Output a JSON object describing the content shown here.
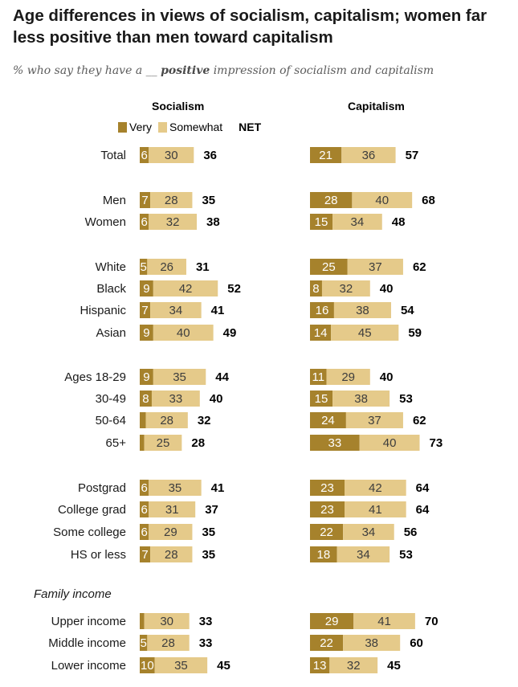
{
  "title": "Age differences in views of socialism, capitalism; women far less positive than men toward capitalism",
  "subtitle_prefix": "% who say they have a __",
  "subtitle_emph": "positive",
  "subtitle_suffix": "impression of socialism and capitalism",
  "colors": {
    "very": "#a6822c",
    "somewhat": "#e5ca8a"
  },
  "legend": {
    "very": "Very",
    "somewhat": "Somewhat",
    "net": "NET"
  },
  "chart_data": {
    "type": "bar",
    "stacked": true,
    "panels": [
      "Socialism",
      "Capitalism"
    ],
    "section_labels": [
      "Family income"
    ],
    "categories": [
      "Total",
      "Men",
      "Women",
      "White",
      "Black",
      "Hispanic",
      "Asian",
      "Ages 18-29",
      "30-49",
      "50-64",
      "65+",
      "Postgrad",
      "College grad",
      "Some college",
      "HS or less",
      "Upper income",
      "Middle income",
      "Lower income"
    ],
    "socialism": {
      "very": [
        "6",
        "7",
        "6",
        "5",
        "9",
        "7",
        "9",
        "9",
        "8",
        "",
        "",
        "6",
        "6",
        "6",
        "7",
        "",
        "5",
        "10"
      ],
      "somewhat": [
        "30",
        "28",
        "32",
        "26",
        "42",
        "34",
        "40",
        "35",
        "33",
        "28",
        "25",
        "35",
        "31",
        "29",
        "28",
        "30",
        "28",
        "35"
      ],
      "net": [
        "36",
        "35",
        "38",
        "31",
        "52",
        "41",
        "49",
        "44",
        "40",
        "32",
        "28",
        "41",
        "37",
        "35",
        "35",
        "33",
        "33",
        "45"
      ]
    },
    "capitalism": {
      "very": [
        "21",
        "28",
        "15",
        "25",
        "8",
        "16",
        "14",
        "11",
        "15",
        "24",
        "33",
        "23",
        "23",
        "22",
        "18",
        "29",
        "22",
        "13"
      ],
      "somewhat": [
        "36",
        "40",
        "34",
        "37",
        "32",
        "38",
        "45",
        "29",
        "38",
        "37",
        "40",
        "42",
        "41",
        "34",
        "34",
        "41",
        "38",
        "32"
      ],
      "net": [
        "57",
        "68",
        "48",
        "62",
        "40",
        "54",
        "59",
        "40",
        "53",
        "62",
        "73",
        "64",
        "64",
        "56",
        "53",
        "70",
        "60",
        "45"
      ]
    }
  }
}
